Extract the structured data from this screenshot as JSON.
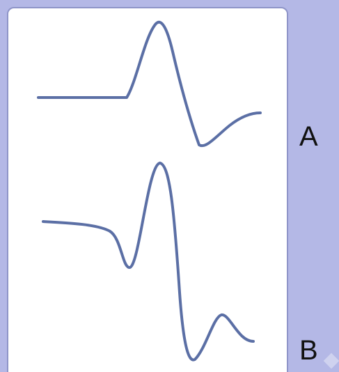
{
  "waveforms": [
    {
      "label": "A",
      "color": "#5b6fa5"
    },
    {
      "label": "B",
      "color": "#5b6fa5"
    }
  ],
  "colors": {
    "background": "#b4b8e6",
    "panel": "#ffffff",
    "panel_border": "#8e94c8",
    "stroke": "#5b6fa5"
  }
}
